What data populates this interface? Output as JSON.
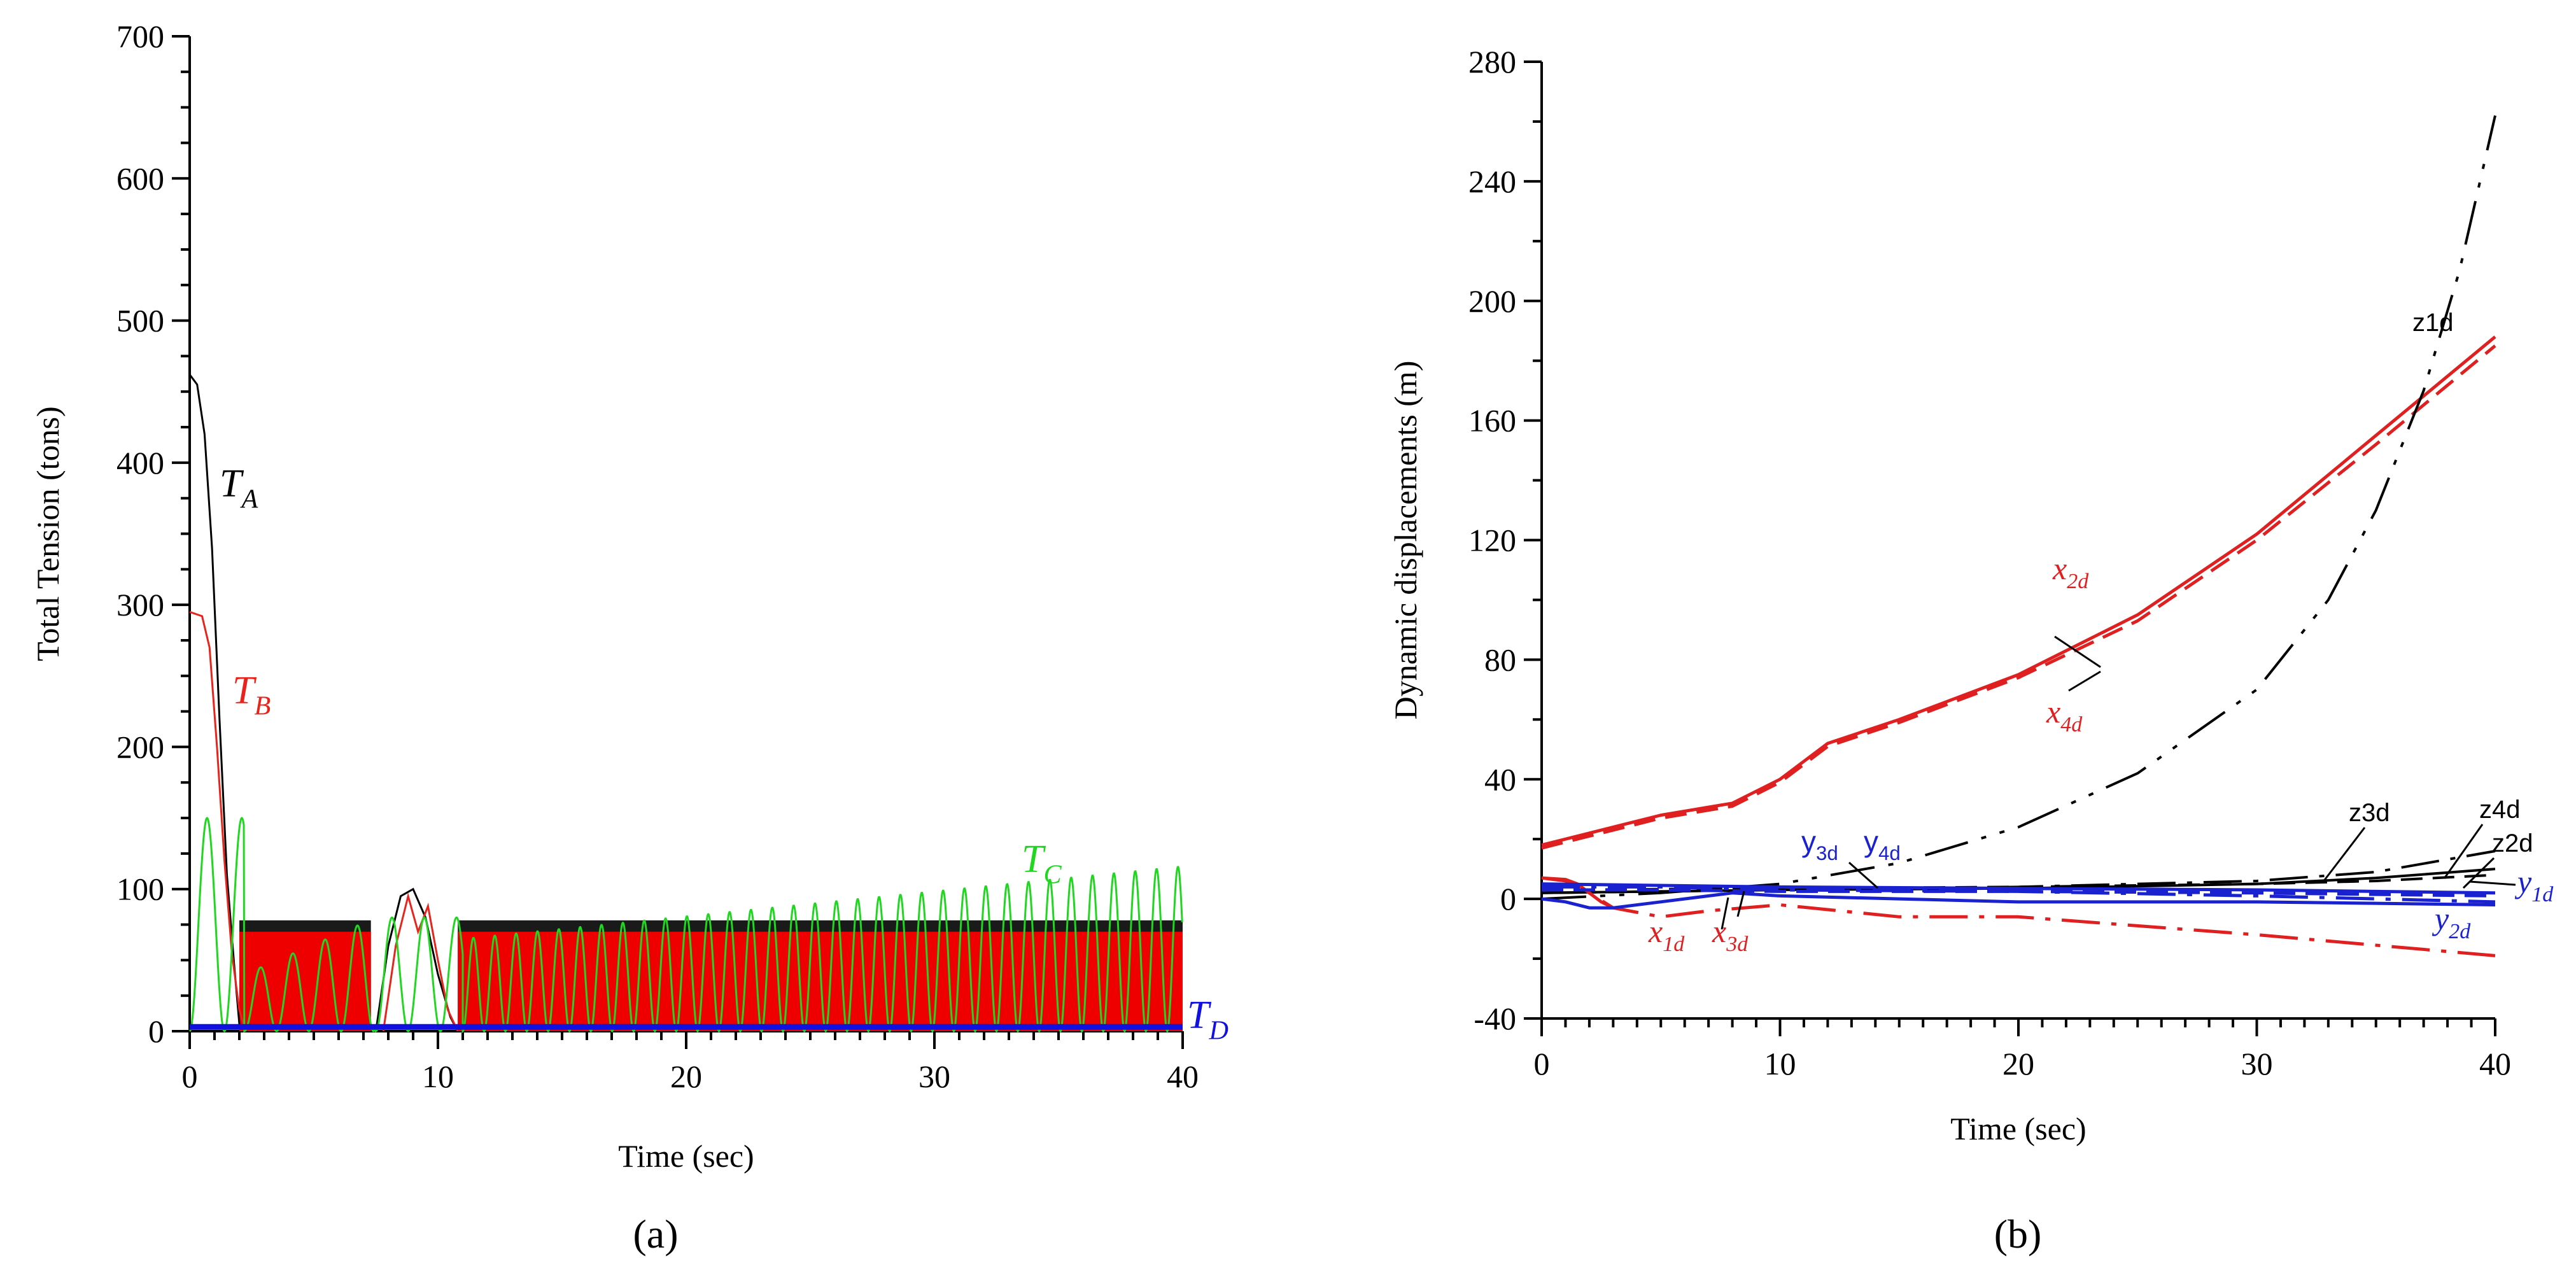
{
  "colors": {
    "TA": "#000000",
    "TB": "#e8231c",
    "TC": "#1fd71f",
    "TD": "#1010e0",
    "fill_black": "#1a1a1a",
    "fill_red": "#ee0000",
    "z": "#000000",
    "x": "#e02020",
    "y": "#1a22d0"
  },
  "chart_data": [
    {
      "type": "line",
      "panel_label": "(a)",
      "xlabel": "Time (sec)",
      "ylabel": "Total Tension (tons)",
      "xlim": [
        0,
        40
      ],
      "ylim": [
        0,
        700
      ],
      "x_ticks": [
        0,
        10,
        20,
        30,
        40
      ],
      "y_ticks": [
        0,
        100,
        200,
        300,
        400,
        500,
        600,
        700
      ],
      "series": [
        {
          "name": "TA",
          "label_main": "T",
          "label_sub": "A",
          "color_key": "TA",
          "x": [
            0,
            0.3,
            0.6,
            0.9,
            1.2,
            1.5,
            1.8,
            2.0
          ],
          "y": [
            462,
            455,
            420,
            340,
            220,
            110,
            45,
            5
          ]
        },
        {
          "name": "TB",
          "label_main": "T",
          "label_sub": "B",
          "color_key": "TB",
          "x": [
            0,
            0.5,
            0.8,
            1.1,
            1.4,
            1.7,
            2.0,
            2.2
          ],
          "y": [
            295,
            292,
            270,
            200,
            120,
            55,
            15,
            3
          ]
        },
        {
          "name": "TC",
          "label_main": "T",
          "label_sub": "C",
          "color_key": "TC",
          "oscillation_segments": [
            {
              "start": 0.0,
              "end": 2.2,
              "period": 1.4,
              "amp_start": 75,
              "amp_end": 75,
              "max_start": 150,
              "max_end": 150
            },
            {
              "start": 2.2,
              "end": 7.5,
              "period": 1.3,
              "amp_start": 20,
              "amp_end": 40,
              "max_start": 40,
              "max_end": 80
            },
            {
              "start": 7.5,
              "end": 11.0,
              "period": 1.3,
              "amp_start": 40,
              "amp_end": 40,
              "max_start": 80,
              "max_end": 80
            },
            {
              "start": 11.0,
              "end": 40.0,
              "period": 0.86,
              "amp_start": 32,
              "amp_end": 58,
              "max_start": 65,
              "max_end": 116
            }
          ]
        },
        {
          "name": "TD",
          "label_main": "T",
          "label_sub": "D",
          "color_key": "TD",
          "constant": 3
        }
      ],
      "bursts": [
        {
          "x_start": 2.0,
          "x_end": 7.3,
          "black_top": 78,
          "red_top": 70
        },
        {
          "x_start": 10.8,
          "x_end": 40.0,
          "black_top": 78,
          "red_top": 70
        }
      ],
      "hump": {
        "black": {
          "x": [
            7.5,
            8.0,
            8.5,
            9.0,
            9.5,
            10.0,
            10.5,
            10.8
          ],
          "y": [
            0,
            60,
            95,
            100,
            80,
            40,
            10,
            0
          ]
        },
        "red": {
          "x": [
            7.8,
            8.3,
            8.8,
            9.2,
            9.6,
            10.0,
            10.4,
            10.8
          ],
          "y": [
            0,
            60,
            95,
            70,
            88,
            50,
            15,
            0
          ]
        }
      }
    },
    {
      "type": "line",
      "panel_label": "(b)",
      "xlabel": "Time (sec)",
      "ylabel": "Dynamic displacements (m)",
      "xlim": [
        0,
        40
      ],
      "ylim": [
        -40,
        280
      ],
      "x_ticks": [
        0,
        10,
        20,
        30,
        40
      ],
      "y_ticks": [
        -40,
        0,
        40,
        80,
        120,
        160,
        200,
        240,
        280
      ],
      "series": [
        {
          "name": "x2d",
          "label_main": "x",
          "label_sub": "2d",
          "color_key": "x",
          "style": "solid",
          "x": [
            0,
            2,
            5,
            8,
            10,
            12,
            15,
            20,
            25,
            30,
            35,
            40
          ],
          "y": [
            18,
            22,
            28,
            32,
            40,
            52,
            60,
            75,
            95,
            122,
            155,
            188
          ]
        },
        {
          "name": "x4d",
          "label_main": "x",
          "label_sub": "4d",
          "color_key": "x",
          "style": "dashed",
          "x": [
            0,
            2,
            5,
            8,
            10,
            12,
            15,
            20,
            25,
            30,
            35,
            40
          ],
          "y": [
            17,
            21,
            27,
            31,
            39,
            51,
            59,
            74,
            93,
            120,
            152,
            185
          ]
        },
        {
          "name": "z1d",
          "label_main": "z1d",
          "label_sub": "",
          "color_key": "z",
          "style": "dashdotdot",
          "x": [
            0,
            5,
            10,
            15,
            20,
            25,
            30,
            33,
            35,
            37,
            38.5,
            40
          ],
          "y": [
            0,
            2,
            5,
            12,
            24,
            42,
            70,
            100,
            130,
            170,
            210,
            262
          ]
        },
        {
          "name": "z2d",
          "label_main": "z2d",
          "label_sub": "",
          "color_key": "z",
          "style": "solid",
          "x": [
            0,
            5,
            10,
            20,
            30,
            35,
            40
          ],
          "y": [
            2,
            2.5,
            3,
            3.5,
            5,
            7,
            10
          ]
        },
        {
          "name": "z3d",
          "label_main": "z3d",
          "label_sub": "",
          "color_key": "z",
          "style": "dashdot",
          "x": [
            0,
            10,
            20,
            30,
            35,
            40
          ],
          "y": [
            2,
            3,
            4,
            6,
            9,
            16
          ]
        },
        {
          "name": "z4d",
          "label_main": "z4d",
          "label_sub": "",
          "color_key": "z",
          "style": "dashed",
          "x": [
            0,
            10,
            20,
            30,
            35,
            40
          ],
          "y": [
            3,
            3.5,
            4,
            5,
            6,
            8
          ]
        },
        {
          "name": "x1d",
          "label_main": "x",
          "label_sub": "1d",
          "color_key": "x",
          "style": "dashdot",
          "x": [
            0,
            1,
            2,
            3,
            5,
            7,
            10,
            15,
            20,
            30,
            40
          ],
          "y": [
            7,
            6,
            2,
            -3,
            -6,
            -4,
            -2,
            -6,
            -6,
            -12,
            -19
          ]
        },
        {
          "name": "x3d",
          "label_main": "x",
          "label_sub": "3d",
          "color_key": "x",
          "style": "solid",
          "x": [
            0,
            1,
            1.5,
            2,
            2.5,
            3
          ],
          "y": [
            7,
            6.5,
            5,
            2,
            -1,
            -3
          ]
        },
        {
          "name": "y1d",
          "label_main": "y",
          "label_sub": "1d",
          "color_key": "y",
          "style": "dashdot",
          "x": [
            0,
            5,
            10,
            20,
            30,
            40
          ],
          "y": [
            4,
            4,
            3,
            2.5,
            1,
            -1
          ]
        },
        {
          "name": "y2d",
          "label_main": "y",
          "label_sub": "2d",
          "color_key": "y",
          "style": "solid",
          "x": [
            0,
            1,
            2,
            3,
            5,
            8,
            10,
            15,
            20,
            30,
            40
          ],
          "y": [
            0,
            -1,
            -3,
            -3,
            -1,
            2,
            1,
            0,
            -1,
            -1,
            -2
          ]
        },
        {
          "name": "y3d",
          "label_main": "y",
          "label_sub": "3d",
          "color_key": "y",
          "style": "dashed",
          "x": [
            0,
            5,
            10,
            20,
            30,
            40
          ],
          "y": [
            3,
            3,
            2.5,
            2.5,
            2,
            1
          ]
        },
        {
          "name": "y4d",
          "label_main": "y",
          "label_sub": "4d",
          "color_key": "y",
          "style": "solid",
          "x": [
            0,
            5,
            10,
            20,
            30,
            40
          ],
          "y": [
            5,
            4.5,
            4,
            3.5,
            3,
            2
          ]
        }
      ]
    }
  ]
}
